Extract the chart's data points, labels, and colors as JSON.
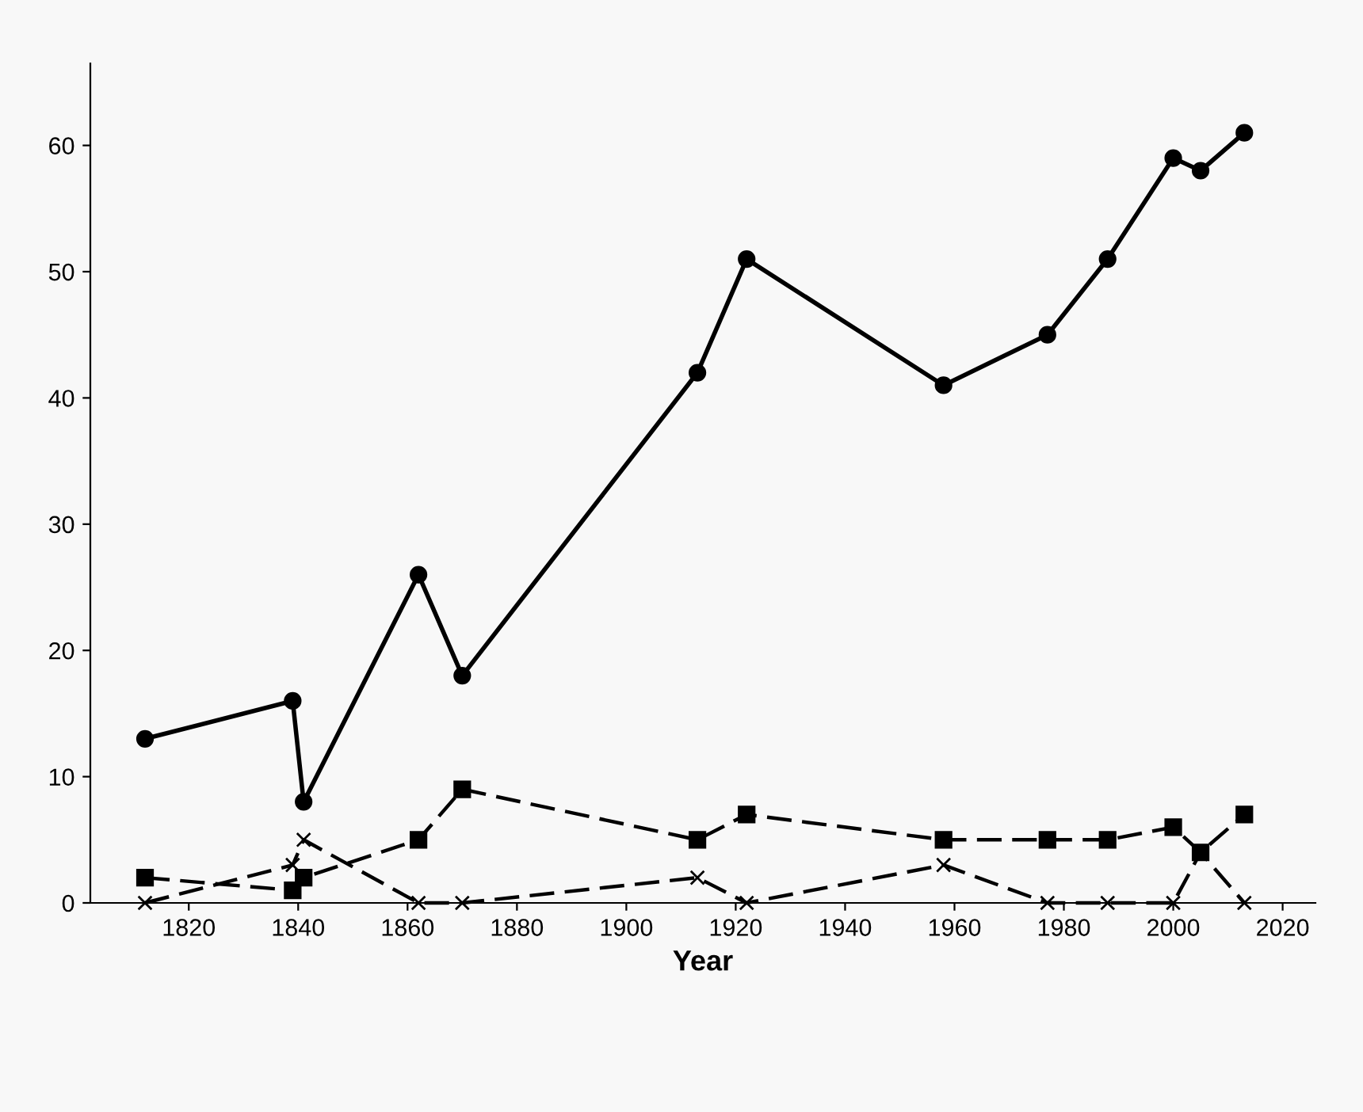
{
  "chart_data": {
    "type": "line",
    "xlabel": "Year",
    "x": [
      1812,
      1839,
      1841,
      1862,
      1870,
      1913,
      1922,
      1958,
      1977,
      1988,
      2000,
      2005,
      2013
    ],
    "series": [
      {
        "color": "#000000",
        "marker": "circle",
        "line_style": "solid",
        "values": [
          13,
          16,
          8,
          26,
          18,
          42,
          51,
          41,
          45,
          51,
          59,
          58,
          61
        ]
      },
      {
        "color": "#000000",
        "marker": "square",
        "line_style": "dashed",
        "values": [
          2,
          1,
          2,
          5,
          9,
          5,
          7,
          5,
          5,
          5,
          6,
          4,
          7
        ]
      },
      {
        "color": "#000000",
        "marker": "cross",
        "line_style": "dashed",
        "values": [
          0,
          3,
          5,
          0,
          0,
          2,
          0,
          3,
          0,
          0,
          0,
          4,
          0
        ]
      }
    ],
    "xlim": [
      1802,
      2026
    ],
    "xticks": [
      1820,
      1840,
      1860,
      1880,
      1900,
      1920,
      1940,
      1960,
      1980,
      2000,
      2020
    ],
    "ylim": [
      0,
      66.5
    ],
    "yticks": [
      0,
      10,
      20,
      30,
      40,
      50,
      60
    ],
    "grid": false,
    "legend": false
  }
}
